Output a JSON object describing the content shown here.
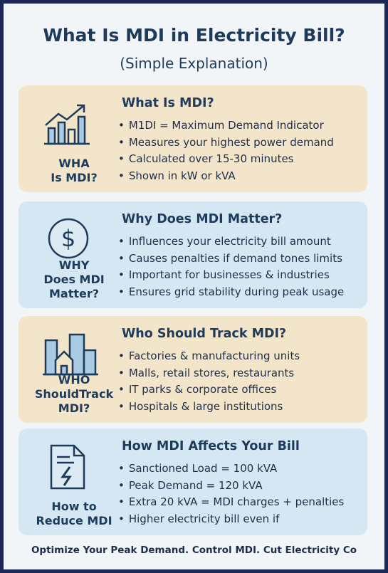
{
  "header": {
    "title": "What Is MDI in Electricity Bill?",
    "subtitle": "(Simple Explanation)"
  },
  "sections": [
    {
      "label": [
        "WHA",
        "Is MDI?"
      ],
      "heading": "What Is MDI?",
      "bullets": [
        "M1DI = Maximum Demand Indicator",
        "Measures your highest power demand",
        "Calculated over 15-30 minutes",
        "Shown in kW or kVA"
      ]
    },
    {
      "label": [
        "WHY",
        "Does MDI",
        "Matter?"
      ],
      "heading": "Why Does MDI Matter?",
      "bullets": [
        "Influences your electricity bill amount",
        "Causes penalties if demand tones limits",
        "Important for businesses & industries",
        "Ensures grid stability during peak usage"
      ]
    },
    {
      "label": [
        "WHO",
        "ShouldTrack",
        "MDI?"
      ],
      "heading": "Who Should Track MDI?",
      "bullets": [
        "Factories & manufacturing units",
        "Malls, retail stores, restaurants",
        "IT parks & corporate offices",
        "Hospitals & large institutions"
      ]
    },
    {
      "label": [
        "How to",
        "Reduce MDI"
      ],
      "heading": "How MDI Affects Your Bill",
      "bullets": [
        "Sanctioned Load = 100 kVA",
        "Peak Demand = 120 kVA",
        "Extra 20 kVA = MDI charges + penalties",
        "Higher electricity bill even if"
      ]
    }
  ],
  "footer": "Optimize Your Peak Demand. Control MDI. Cut Electricity Co"
}
